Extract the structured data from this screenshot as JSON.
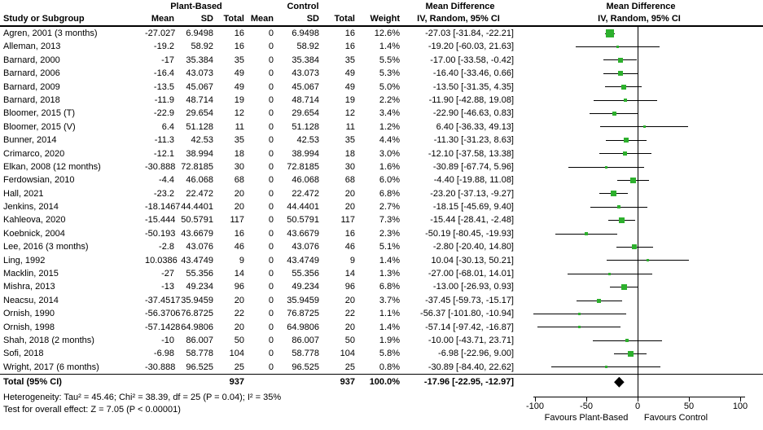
{
  "header": {
    "group1": "Plant-Based",
    "group2": "Control",
    "md_col": "Mean Difference",
    "md_plot": "Mean Difference",
    "study": "Study or Subgroup",
    "mean": "Mean",
    "sd": "SD",
    "total": "Total",
    "mean2": "Mean",
    "sd2": "SD",
    "total2": "Total",
    "weight": "Weight",
    "iv_col": "IV, Random, 95% CI",
    "iv_plot": "IV, Random, 95% CI"
  },
  "footer": {
    "heterogeneity": "Heterogeneity: Tau² = 45.46; Chi² = 38.39, df = 25 (P = 0.04); I² = 35%",
    "overall_effect": "Test for overall effect: Z = 7.05 (P < 0.00001)"
  },
  "colors": {
    "marker_green": "#2db02d",
    "line_black": "#000000",
    "diamond_black": "#000000"
  },
  "chart_data": {
    "type": "scatter",
    "subtype": "forest-plot",
    "effect_measure": "Mean Difference, IV, Random, 95% CI",
    "xlim": [
      -105,
      105
    ],
    "x_ticks": [
      -100,
      -50,
      0,
      50,
      100
    ],
    "x_axis_labels": {
      "left": "Favours Plant-Based",
      "right": "Favours Control"
    },
    "studies": [
      {
        "label": "Agren, 2001 (3 months)",
        "pb_mean": "-27.027",
        "pb_sd": "6.9498",
        "pb_total": "16",
        "c_mean": "0",
        "c_sd": "6.9498",
        "c_total": "16",
        "weight": "12.6%",
        "ci_text": "-27.03 [-31.84, -22.21]",
        "est": -27.03,
        "lo": -31.84,
        "hi": -22.21,
        "w": 12.6
      },
      {
        "label": "Alleman, 2013",
        "pb_mean": "-19.2",
        "pb_sd": "58.92",
        "pb_total": "16",
        "c_mean": "0",
        "c_sd": "58.92",
        "c_total": "16",
        "weight": "1.4%",
        "ci_text": "-19.20 [-60.03, 21.63]",
        "est": -19.2,
        "lo": -60.03,
        "hi": 21.63,
        "w": 1.4
      },
      {
        "label": "Barnard, 2000",
        "pb_mean": "-17",
        "pb_sd": "35.384",
        "pb_total": "35",
        "c_mean": "0",
        "c_sd": "35.384",
        "c_total": "35",
        "weight": "5.5%",
        "ci_text": "-17.00 [-33.58, -0.42]",
        "est": -17.0,
        "lo": -33.58,
        "hi": -0.42,
        "w": 5.5
      },
      {
        "label": "Barnard, 2006",
        "pb_mean": "-16.4",
        "pb_sd": "43.073",
        "pb_total": "49",
        "c_mean": "0",
        "c_sd": "43.073",
        "c_total": "49",
        "weight": "5.3%",
        "ci_text": "-16.40 [-33.46, 0.66]",
        "est": -16.4,
        "lo": -33.46,
        "hi": 0.66,
        "w": 5.3
      },
      {
        "label": "Barnard, 2009",
        "pb_mean": "-13.5",
        "pb_sd": "45.067",
        "pb_total": "49",
        "c_mean": "0",
        "c_sd": "45.067",
        "c_total": "49",
        "weight": "5.0%",
        "ci_text": "-13.50 [-31.35, 4.35]",
        "est": -13.5,
        "lo": -31.35,
        "hi": 4.35,
        "w": 5.0
      },
      {
        "label": "Barnard, 2018",
        "pb_mean": "-11.9",
        "pb_sd": "48.714",
        "pb_total": "19",
        "c_mean": "0",
        "c_sd": "48.714",
        "c_total": "19",
        "weight": "2.2%",
        "ci_text": "-11.90 [-42.88, 19.08]",
        "est": -11.9,
        "lo": -42.88,
        "hi": 19.08,
        "w": 2.2
      },
      {
        "label": "Bloomer, 2015 (T)",
        "pb_mean": "-22.9",
        "pb_sd": "29.654",
        "pb_total": "12",
        "c_mean": "0",
        "c_sd": "29.654",
        "c_total": "12",
        "weight": "3.4%",
        "ci_text": "-22.90 [-46.63, 0.83]",
        "est": -22.9,
        "lo": -46.63,
        "hi": 0.83,
        "w": 3.4
      },
      {
        "label": "Bloomer, 2015 (V)",
        "pb_mean": "6.4",
        "pb_sd": "51.128",
        "pb_total": "11",
        "c_mean": "0",
        "c_sd": "51.128",
        "c_total": "11",
        "weight": "1.2%",
        "ci_text": "6.40 [-36.33, 49.13]",
        "est": 6.4,
        "lo": -36.33,
        "hi": 49.13,
        "w": 1.2
      },
      {
        "label": "Bunner, 2014",
        "pb_mean": "-11.3",
        "pb_sd": "42.53",
        "pb_total": "35",
        "c_mean": "0",
        "c_sd": "42.53",
        "c_total": "35",
        "weight": "4.4%",
        "ci_text": "-11.30 [-31.23, 8.63]",
        "est": -11.3,
        "lo": -31.23,
        "hi": 8.63,
        "w": 4.4
      },
      {
        "label": "Crimarco, 2020",
        "pb_mean": "-12.1",
        "pb_sd": "38.994",
        "pb_total": "18",
        "c_mean": "0",
        "c_sd": "38.994",
        "c_total": "18",
        "weight": "3.0%",
        "ci_text": "-12.10 [-37.58, 13.38]",
        "est": -12.1,
        "lo": -37.58,
        "hi": 13.38,
        "w": 3.0
      },
      {
        "label": "Elkan, 2008 (12 months)",
        "pb_mean": "-30.888",
        "pb_sd": "72.8185",
        "pb_total": "30",
        "c_mean": "0",
        "c_sd": "72.8185",
        "c_total": "30",
        "weight": "1.6%",
        "ci_text": "-30.89 [-67.74, 5.96]",
        "est": -30.89,
        "lo": -67.74,
        "hi": 5.96,
        "w": 1.6
      },
      {
        "label": "Ferdowsian, 2010",
        "pb_mean": "-4.4",
        "pb_sd": "46.068",
        "pb_total": "68",
        "c_mean": "0",
        "c_sd": "46.068",
        "c_total": "68",
        "weight": "6.0%",
        "ci_text": "-4.40 [-19.88, 11.08]",
        "est": -4.4,
        "lo": -19.88,
        "hi": 11.08,
        "w": 6.0
      },
      {
        "label": "Hall, 2021",
        "pb_mean": "-23.2",
        "pb_sd": "22.472",
        "pb_total": "20",
        "c_mean": "0",
        "c_sd": "22.472",
        "c_total": "20",
        "weight": "6.8%",
        "ci_text": "-23.20 [-37.13, -9.27]",
        "est": -23.2,
        "lo": -37.13,
        "hi": -9.27,
        "w": 6.8
      },
      {
        "label": "Jenkins, 2014",
        "pb_mean": "-18.1467",
        "pb_sd": "44.4401",
        "pb_total": "20",
        "c_mean": "0",
        "c_sd": "44.4401",
        "c_total": "20",
        "weight": "2.7%",
        "ci_text": "-18.15 [-45.69, 9.40]",
        "est": -18.15,
        "lo": -45.69,
        "hi": 9.4,
        "w": 2.7
      },
      {
        "label": "Kahleova, 2020",
        "pb_mean": "-15.444",
        "pb_sd": "50.5791",
        "pb_total": "117",
        "c_mean": "0",
        "c_sd": "50.5791",
        "c_total": "117",
        "weight": "7.3%",
        "ci_text": "-15.44 [-28.41, -2.48]",
        "est": -15.44,
        "lo": -28.41,
        "hi": -2.48,
        "w": 7.3
      },
      {
        "label": "Koebnick, 2004",
        "pb_mean": "-50.193",
        "pb_sd": "43.6679",
        "pb_total": "16",
        "c_mean": "0",
        "c_sd": "43.6679",
        "c_total": "16",
        "weight": "2.3%",
        "ci_text": "-50.19 [-80.45, -19.93]",
        "est": -50.19,
        "lo": -80.45,
        "hi": -19.93,
        "w": 2.3
      },
      {
        "label": "Lee, 2016 (3 months)",
        "pb_mean": "-2.8",
        "pb_sd": "43.076",
        "pb_total": "46",
        "c_mean": "0",
        "c_sd": "43.076",
        "c_total": "46",
        "weight": "5.1%",
        "ci_text": "-2.80 [-20.40, 14.80]",
        "est": -2.8,
        "lo": -20.4,
        "hi": 14.8,
        "w": 5.1
      },
      {
        "label": "Ling, 1992",
        "pb_mean": "10.0386",
        "pb_sd": "43.4749",
        "pb_total": "9",
        "c_mean": "0",
        "c_sd": "43.4749",
        "c_total": "9",
        "weight": "1.4%",
        "ci_text": "10.04 [-30.13, 50.21]",
        "est": 10.04,
        "lo": -30.13,
        "hi": 50.21,
        "w": 1.4
      },
      {
        "label": "Macklin, 2015",
        "pb_mean": "-27",
        "pb_sd": "55.356",
        "pb_total": "14",
        "c_mean": "0",
        "c_sd": "55.356",
        "c_total": "14",
        "weight": "1.3%",
        "ci_text": "-27.00 [-68.01, 14.01]",
        "est": -27.0,
        "lo": -68.01,
        "hi": 14.01,
        "w": 1.3
      },
      {
        "label": "Mishra, 2013",
        "pb_mean": "-13",
        "pb_sd": "49.234",
        "pb_total": "96",
        "c_mean": "0",
        "c_sd": "49.234",
        "c_total": "96",
        "weight": "6.8%",
        "ci_text": "-13.00 [-26.93, 0.93]",
        "est": -13.0,
        "lo": -26.93,
        "hi": 0.93,
        "w": 6.8
      },
      {
        "label": "Neacsu, 2014",
        "pb_mean": "-37.4517",
        "pb_sd": "35.9459",
        "pb_total": "20",
        "c_mean": "0",
        "c_sd": "35.9459",
        "c_total": "20",
        "weight": "3.7%",
        "ci_text": "-37.45 [-59.73, -15.17]",
        "est": -37.45,
        "lo": -59.73,
        "hi": -15.17,
        "w": 3.7
      },
      {
        "label": "Ornish, 1990",
        "pb_mean": "-56.3706",
        "pb_sd": "76.8725",
        "pb_total": "22",
        "c_mean": "0",
        "c_sd": "76.8725",
        "c_total": "22",
        "weight": "1.1%",
        "ci_text": "-56.37 [-101.80, -10.94]",
        "est": -56.37,
        "lo": -101.8,
        "hi": -10.94,
        "w": 1.1
      },
      {
        "label": "Ornish, 1998",
        "pb_mean": "-57.1428",
        "pb_sd": "64.9806",
        "pb_total": "20",
        "c_mean": "0",
        "c_sd": "64.9806",
        "c_total": "20",
        "weight": "1.4%",
        "ci_text": "-57.14 [-97.42, -16.87]",
        "est": -57.14,
        "lo": -97.42,
        "hi": -16.87,
        "w": 1.4
      },
      {
        "label": "Shah, 2018 (2 months)",
        "pb_mean": "-10",
        "pb_sd": "86.007",
        "pb_total": "50",
        "c_mean": "0",
        "c_sd": "86.007",
        "c_total": "50",
        "weight": "1.9%",
        "ci_text": "-10.00 [-43.71, 23.71]",
        "est": -10.0,
        "lo": -43.71,
        "hi": 23.71,
        "w": 1.9
      },
      {
        "label": "Sofi, 2018",
        "pb_mean": "-6.98",
        "pb_sd": "58.778",
        "pb_total": "104",
        "c_mean": "0",
        "c_sd": "58.778",
        "c_total": "104",
        "weight": "5.8%",
        "ci_text": "-6.98 [-22.96, 9.00]",
        "est": -6.98,
        "lo": -22.96,
        "hi": 9.0,
        "w": 5.8
      },
      {
        "label": "Wright, 2017 (6 months)",
        "pb_mean": "-30.888",
        "pb_sd": "96.525",
        "pb_total": "25",
        "c_mean": "0",
        "c_sd": "96.525",
        "c_total": "25",
        "weight": "0.8%",
        "ci_text": "-30.89 [-84.40, 22.62]",
        "est": -30.89,
        "lo": -84.4,
        "hi": 22.62,
        "w": 0.8
      }
    ],
    "total": {
      "label": "Total (95% CI)",
      "pb_total": "937",
      "c_total": "937",
      "weight": "100.0%",
      "ci_text": "-17.96 [-22.95, -12.97]",
      "est": -17.96,
      "lo": -22.95,
      "hi": -12.97
    }
  }
}
